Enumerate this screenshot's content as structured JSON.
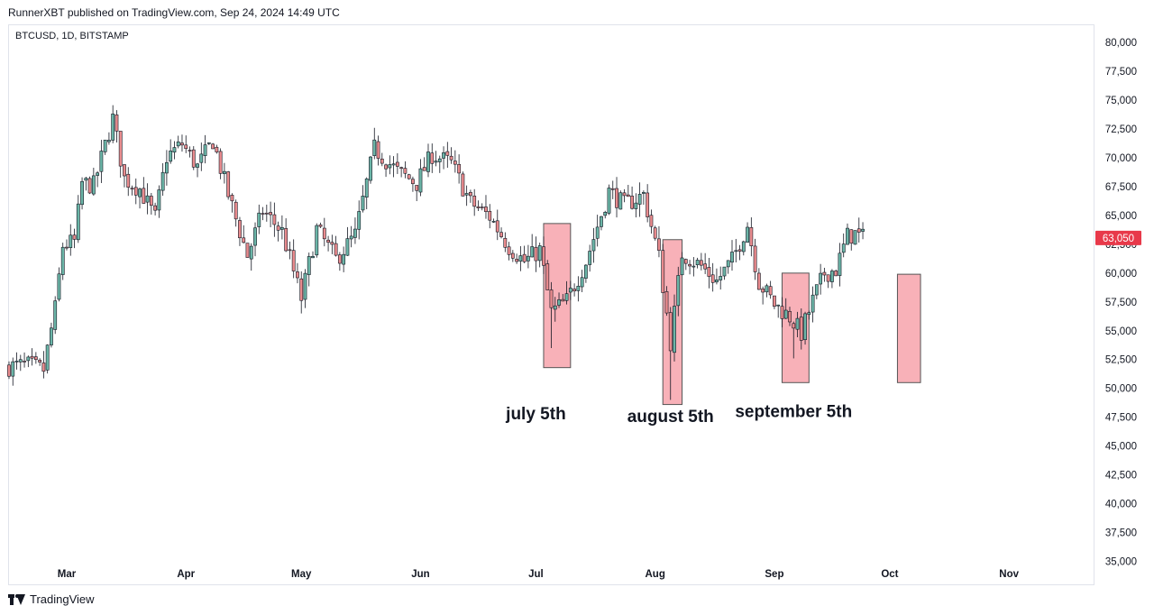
{
  "header": {
    "published_line": "RunnerXBT published on TradingView.com, Sep 24, 2024 14:49 UTC",
    "symbol_line": "BTCUSD, 1D, BITSTAMP"
  },
  "footer": {
    "brand": "TradingView"
  },
  "colors": {
    "up": "#26a69a",
    "up_fill": "#6bb5a7",
    "down": "#ef5350",
    "down_fill": "#e98b8e",
    "wick": "#131722",
    "highlight_fill": "#f7a8b0",
    "highlight_stroke": "#555555",
    "price_label": "#e8394a",
    "grid_frame": "#e0e3eb"
  },
  "chart_data": {
    "type": "candlestick",
    "title": "BTCUSD, 1D, BITSTAMP",
    "xlabel": "",
    "ylabel": "",
    "ylim": [
      33000,
      81500
    ],
    "x_range": [
      "2024-02-15",
      "2024-11-23"
    ],
    "grid": false,
    "y_ticks": [
      "35,000",
      "37,500",
      "40,000",
      "42,500",
      "45,000",
      "47,500",
      "50,000",
      "52,500",
      "55,000",
      "57,500",
      "60,000",
      "62,500",
      "65,000",
      "67,500",
      "70,000",
      "72,500",
      "75,000",
      "77,500",
      "80,000"
    ],
    "x_ticks": [
      {
        "label": "Mar",
        "date": "2024-03-01"
      },
      {
        "label": "Apr",
        "date": "2024-04-01"
      },
      {
        "label": "May",
        "date": "2024-05-01"
      },
      {
        "label": "Jun",
        "date": "2024-06-01"
      },
      {
        "label": "Jul",
        "date": "2024-07-01"
      },
      {
        "label": "Aug",
        "date": "2024-08-01"
      },
      {
        "label": "Sep",
        "date": "2024-09-01"
      },
      {
        "label": "Oct",
        "date": "2024-10-01"
      },
      {
        "label": "Nov",
        "date": "2024-11-01"
      }
    ],
    "last_price": {
      "value": 63050,
      "label": "63,050"
    },
    "closes": [
      {
        "d": "2024-02-15",
        "c": 51900
      },
      {
        "d": "2024-02-20",
        "c": 52000
      },
      {
        "d": "2024-02-24",
        "c": 51600
      },
      {
        "d": "2024-02-27",
        "c": 56900
      },
      {
        "d": "2024-02-29",
        "c": 62400
      },
      {
        "d": "2024-03-03",
        "c": 62700
      },
      {
        "d": "2024-03-05",
        "c": 67800
      },
      {
        "d": "2024-03-08",
        "c": 67600
      },
      {
        "d": "2024-03-11",
        "c": 71100
      },
      {
        "d": "2024-03-13",
        "c": 73400
      },
      {
        "d": "2024-03-16",
        "c": 68200
      },
      {
        "d": "2024-03-20",
        "c": 67300
      },
      {
        "d": "2024-03-24",
        "c": 64800
      },
      {
        "d": "2024-03-27",
        "c": 70100
      },
      {
        "d": "2024-03-31",
        "c": 71200
      },
      {
        "d": "2024-04-04",
        "c": 69200
      },
      {
        "d": "2024-04-08",
        "c": 71500
      },
      {
        "d": "2024-04-12",
        "c": 66800
      },
      {
        "d": "2024-04-17",
        "c": 61500
      },
      {
        "d": "2024-04-21",
        "c": 65400
      },
      {
        "d": "2024-04-26",
        "c": 63600
      },
      {
        "d": "2024-05-01",
        "c": 57800
      },
      {
        "d": "2024-05-05",
        "c": 63800
      },
      {
        "d": "2024-05-10",
        "c": 61200
      },
      {
        "d": "2024-05-15",
        "c": 63300
      },
      {
        "d": "2024-05-20",
        "c": 70800
      },
      {
        "d": "2024-05-26",
        "c": 68800
      },
      {
        "d": "2024-05-31",
        "c": 67800
      },
      {
        "d": "2024-06-04",
        "c": 70300
      },
      {
        "d": "2024-06-09",
        "c": 69500
      },
      {
        "d": "2024-06-14",
        "c": 66100
      },
      {
        "d": "2024-06-19",
        "c": 64900
      },
      {
        "d": "2024-06-24",
        "c": 62300
      },
      {
        "d": "2024-06-28",
        "c": 61000
      },
      {
        "d": "2024-07-02",
        "c": 62000
      },
      {
        "d": "2024-07-05",
        "c": 56600
      },
      {
        "d": "2024-07-09",
        "c": 57600
      },
      {
        "d": "2024-07-14",
        "c": 61000
      },
      {
        "d": "2024-07-20",
        "c": 67100
      },
      {
        "d": "2024-07-24",
        "c": 65900
      },
      {
        "d": "2024-07-29",
        "c": 66800
      },
      {
        "d": "2024-08-02",
        "c": 61400
      },
      {
        "d": "2024-08-05",
        "c": 54000
      },
      {
        "d": "2024-08-08",
        "c": 61700
      },
      {
        "d": "2024-08-13",
        "c": 60600
      },
      {
        "d": "2024-08-17",
        "c": 59300
      },
      {
        "d": "2024-08-21",
        "c": 61100
      },
      {
        "d": "2024-08-25",
        "c": 64200
      },
      {
        "d": "2024-08-28",
        "c": 59200
      },
      {
        "d": "2024-09-01",
        "c": 57300
      },
      {
        "d": "2024-09-05",
        "c": 56200
      },
      {
        "d": "2024-09-08",
        "c": 54800
      },
      {
        "d": "2024-09-11",
        "c": 57600
      },
      {
        "d": "2024-09-14",
        "c": 60000
      },
      {
        "d": "2024-09-17",
        "c": 60300
      },
      {
        "d": "2024-09-20",
        "c": 63200
      },
      {
        "d": "2024-09-22",
        "c": 63400
      },
      {
        "d": "2024-09-24",
        "c": 63050
      }
    ],
    "highlight_zones": [
      {
        "from": "2024-07-03",
        "to": "2024-07-10",
        "high": 64300,
        "low": 51800
      },
      {
        "from": "2024-08-03",
        "to": "2024-08-08",
        "high": 62900,
        "low": 48600
      },
      {
        "from": "2024-09-03",
        "to": "2024-09-10",
        "high": 60000,
        "low": 50500
      },
      {
        "from": "2024-10-03",
        "to": "2024-10-09",
        "high": 59900,
        "low": 50500
      }
    ],
    "annotations": [
      {
        "text": "july 5th",
        "date": "2024-07-01",
        "price": 47300
      },
      {
        "text": "august 5th",
        "date": "2024-08-05",
        "price": 47100
      },
      {
        "text": "september 5th",
        "date": "2024-09-06",
        "price": 47500
      }
    ]
  }
}
